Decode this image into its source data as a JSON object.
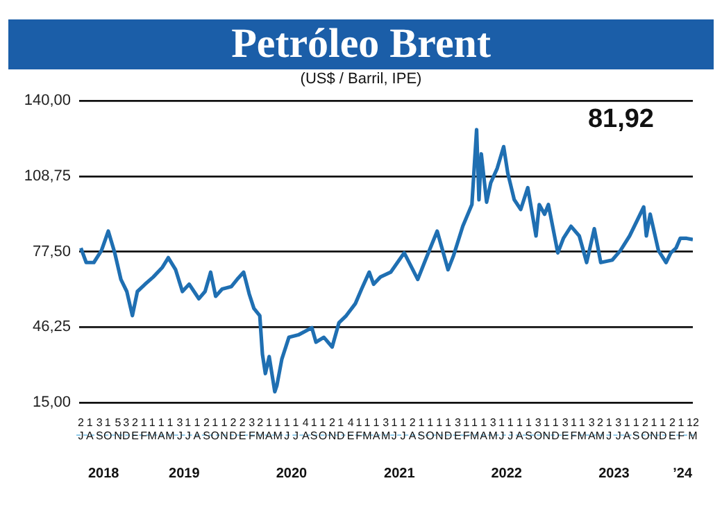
{
  "chart_data": {
    "type": "line",
    "title": "Petróleo Brent",
    "subtitle": "(US$ / Barril, IPE)",
    "x": [
      "2018-07-02",
      "2018-07-20",
      "2018-08-15",
      "2018-09-10",
      "2018-10-03",
      "2018-10-25",
      "2018-11-15",
      "2018-12-05",
      "2018-12-24",
      "2019-01-10",
      "2019-02-05",
      "2019-03-05",
      "2019-04-05",
      "2019-04-25",
      "2019-05-20",
      "2019-06-12",
      "2019-07-05",
      "2019-08-07",
      "2019-08-28",
      "2019-09-16",
      "2019-10-03",
      "2019-10-25",
      "2019-11-25",
      "2019-12-15",
      "2020-01-06",
      "2020-01-25",
      "2020-02-10",
      "2020-03-01",
      "2020-03-10",
      "2020-03-20",
      "2020-04-02",
      "2020-04-21",
      "2020-04-28",
      "2020-05-15",
      "2020-06-08",
      "2020-07-10",
      "2020-08-25",
      "2020-09-08",
      "2020-10-05",
      "2020-11-02",
      "2020-11-25",
      "2020-12-20",
      "2021-01-20",
      "2021-02-10",
      "2021-03-08",
      "2021-03-23",
      "2021-04-15",
      "2021-05-20",
      "2021-07-05",
      "2021-08-20",
      "2021-09-15",
      "2021-10-25",
      "2021-12-01",
      "2021-12-20",
      "2022-01-20",
      "2022-02-20",
      "2022-03-08",
      "2022-03-16",
      "2022-03-24",
      "2022-04-11",
      "2022-04-25",
      "2022-05-17",
      "2022-06-08",
      "2022-06-22",
      "2022-07-14",
      "2022-08-05",
      "2022-08-29",
      "2022-09-26",
      "2022-10-07",
      "2022-10-25",
      "2022-11-07",
      "2022-12-09",
      "2022-12-28",
      "2023-01-23",
      "2023-02-20",
      "2023-03-17",
      "2023-04-12",
      "2023-05-04",
      "2023-06-12",
      "2023-07-10",
      "2023-08-10",
      "2023-09-27",
      "2023-10-06",
      "2023-10-19",
      "2023-11-16",
      "2023-12-12",
      "2023-12-28",
      "2024-01-15",
      "2024-01-29",
      "2024-02-20",
      "2024-03-12"
    ],
    "values": [
      79,
      73,
      73,
      78,
      86,
      77,
      66,
      61,
      51,
      61,
      64,
      67,
      71,
      75,
      70,
      61,
      64,
      58,
      61,
      69,
      59,
      62,
      63,
      66,
      69,
      60,
      54,
      51,
      35,
      27,
      34,
      19.5,
      22,
      33,
      42,
      43,
      46,
      40,
      42,
      38,
      48,
      51,
      56,
      62,
      69,
      64,
      67,
      69,
      77,
      66,
      74,
      86,
      70,
      76,
      88,
      97,
      128,
      99,
      118,
      98,
      106,
      112,
      121,
      110,
      99,
      95,
      104,
      84,
      97,
      93,
      97,
      77,
      83,
      88,
      84,
      73,
      87,
      73,
      74,
      78,
      84,
      96,
      84,
      93,
      78,
      73,
      77,
      79,
      83,
      83,
      82.5
    ],
    "color": "#1f6fb2",
    "xlim": [
      "2018-06-26",
      "2024-03-12"
    ],
    "xticks": [
      {
        "value": "2018-07-02",
        "label": "2\nJ"
      },
      {
        "value": "2018-08-01",
        "label": "1\nA"
      },
      {
        "value": "2018-09-03",
        "label": "3\nS"
      },
      {
        "value": "2018-10-01",
        "label": "1\nO"
      },
      {
        "value": "2018-11-05",
        "label": "5\nN"
      },
      {
        "value": "2018-12-03",
        "label": "3\nD"
      },
      {
        "value": "2019-01-02",
        "label": "2\nE"
      },
      {
        "value": "2019-02-01",
        "label": "1\nF"
      },
      {
        "value": "2019-03-01",
        "label": "1\nM"
      },
      {
        "value": "2019-04-01",
        "label": "1\nA"
      },
      {
        "value": "2019-05-01",
        "label": "1\nM"
      },
      {
        "value": "2019-06-03",
        "label": "3\nJ"
      },
      {
        "value": "2019-07-01",
        "label": "1\nJ"
      },
      {
        "value": "2019-08-01",
        "label": "1\nA"
      },
      {
        "value": "2019-09-02",
        "label": "2\nS"
      },
      {
        "value": "2019-10-01",
        "label": "1\nO"
      },
      {
        "value": "2019-11-01",
        "label": "1\nN"
      },
      {
        "value": "2019-12-02",
        "label": "2\nD"
      },
      {
        "value": "2020-01-02",
        "label": "2\nE"
      },
      {
        "value": "2020-02-03",
        "label": "3\nF"
      },
      {
        "value": "2020-03-02",
        "label": "2\nM"
      },
      {
        "value": "2020-04-01",
        "label": "1\nA"
      },
      {
        "value": "2020-05-01",
        "label": "1\nM"
      },
      {
        "value": "2020-06-01",
        "label": "1\nJ"
      },
      {
        "value": "2020-07-01",
        "label": "1\nJ"
      },
      {
        "value": "2020-08-04",
        "label": "4\nA"
      },
      {
        "value": "2020-09-01",
        "label": "1\nS"
      },
      {
        "value": "2020-10-01",
        "label": "1\nO"
      },
      {
        "value": "2020-11-02",
        "label": "2\nN"
      },
      {
        "value": "2020-12-01",
        "label": "1\nD"
      },
      {
        "value": "2021-01-04",
        "label": "4\nE"
      },
      {
        "value": "2021-02-01",
        "label": "1\nF"
      },
      {
        "value": "2021-03-01",
        "label": "1\nM"
      },
      {
        "value": "2021-04-01",
        "label": "1\nA"
      },
      {
        "value": "2021-05-03",
        "label": "3\nM"
      },
      {
        "value": "2021-06-01",
        "label": "1\nJ"
      },
      {
        "value": "2021-07-01",
        "label": "1\nJ"
      },
      {
        "value": "2021-08-02",
        "label": "2\nA"
      },
      {
        "value": "2021-09-01",
        "label": "1\nS"
      },
      {
        "value": "2021-10-01",
        "label": "1\nO"
      },
      {
        "value": "2021-11-01",
        "label": "1\nN"
      },
      {
        "value": "2021-12-01",
        "label": "1\nD"
      },
      {
        "value": "2022-01-03",
        "label": "3\nE"
      },
      {
        "value": "2022-02-01",
        "label": "1\nF"
      },
      {
        "value": "2022-03-01",
        "label": "1\nM"
      },
      {
        "value": "2022-04-01",
        "label": "1\nA"
      },
      {
        "value": "2022-05-03",
        "label": "3\nM"
      },
      {
        "value": "2022-06-01",
        "label": "1\nJ"
      },
      {
        "value": "2022-07-01",
        "label": "1\nJ"
      },
      {
        "value": "2022-08-01",
        "label": "1\nA"
      },
      {
        "value": "2022-09-01",
        "label": "1\nS"
      },
      {
        "value": "2022-10-03",
        "label": "3\nO"
      },
      {
        "value": "2022-11-01",
        "label": "1\nN"
      },
      {
        "value": "2022-12-01",
        "label": "1\nD"
      },
      {
        "value": "2023-01-03",
        "label": "3\nE"
      },
      {
        "value": "2023-02-01",
        "label": "1\nF"
      },
      {
        "value": "2023-03-01",
        "label": "1\nM"
      },
      {
        "value": "2023-04-03",
        "label": "3\nA"
      },
      {
        "value": "2023-05-02",
        "label": "2\nM"
      },
      {
        "value": "2023-06-01",
        "label": "1\nJ"
      },
      {
        "value": "2023-07-03",
        "label": "3\nJ"
      },
      {
        "value": "2023-08-01",
        "label": "1\nA"
      },
      {
        "value": "2023-09-01",
        "label": "1\nS"
      },
      {
        "value": "2023-10-02",
        "label": "2\nO"
      },
      {
        "value": "2023-11-01",
        "label": "1\nN"
      },
      {
        "value": "2023-12-01",
        "label": "1\nD"
      },
      {
        "value": "2024-01-02",
        "label": "2\nE"
      },
      {
        "value": "2024-02-01",
        "label": "1\nF"
      },
      {
        "value": "2024-03-12",
        "label": "12\nM"
      }
    ],
    "ylim": [
      15,
      140
    ],
    "yticks": [
      {
        "value": 15,
        "label": "15,00"
      },
      {
        "value": 46.25,
        "label": "46,25"
      },
      {
        "value": 77.5,
        "label": "77,50"
      },
      {
        "value": 108.75,
        "label": "108,75"
      },
      {
        "value": 140,
        "label": "140,00"
      }
    ],
    "grid": "y",
    "legend": false,
    "marker": "none",
    "line_style": "solid",
    "annotations": [
      "81,92",
      "2018",
      "2019",
      "2020",
      "2021",
      "2022",
      "2023",
      "’24"
    ]
  }
}
